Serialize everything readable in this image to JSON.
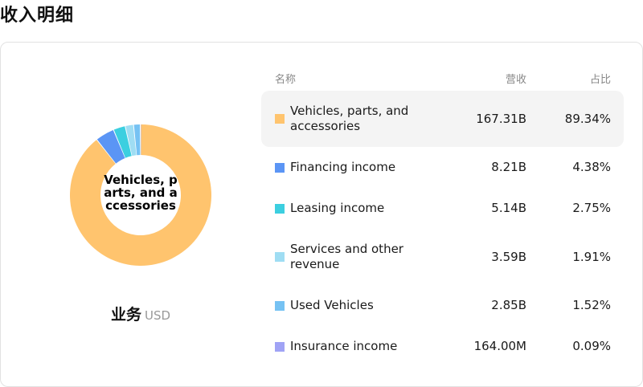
{
  "page": {
    "title": "收入明细"
  },
  "chart_data": {
    "type": "pie",
    "center_label": "Vehicles, parts, and accessories",
    "categories": [
      "Vehicles, parts, and accessories",
      "Financing income",
      "Leasing income",
      "Services and other revenue",
      "Used Vehicles",
      "Insurance income"
    ],
    "values": [
      89.34,
      4.38,
      2.75,
      1.91,
      1.52,
      0.09
    ],
    "colors": [
      "#FFC46E",
      "#5B95F5",
      "#3CCFE0",
      "#9FDDF3",
      "#76C2F3",
      "#A0A3F5"
    ]
  },
  "segment": {
    "label": "业务",
    "currency": "USD"
  },
  "table": {
    "headers": {
      "name": "名称",
      "revenue": "营收",
      "share": "占比"
    },
    "rows": [
      {
        "name": "Vehicles, parts, and accessories",
        "revenue": "167.31B",
        "share": "89.34%",
        "color": "#FFC46E"
      },
      {
        "name": "Financing income",
        "revenue": "8.21B",
        "share": "4.38%",
        "color": "#5B95F5"
      },
      {
        "name": "Leasing income",
        "revenue": "5.14B",
        "share": "2.75%",
        "color": "#3CCFE0"
      },
      {
        "name": "Services and other revenue",
        "revenue": "3.59B",
        "share": "1.91%",
        "color": "#9FDDF3"
      },
      {
        "name": "Used Vehicles",
        "revenue": "2.85B",
        "share": "1.52%",
        "color": "#76C2F3"
      },
      {
        "name": "Insurance income",
        "revenue": "164.00M",
        "share": "0.09%",
        "color": "#A0A3F5"
      }
    ]
  }
}
